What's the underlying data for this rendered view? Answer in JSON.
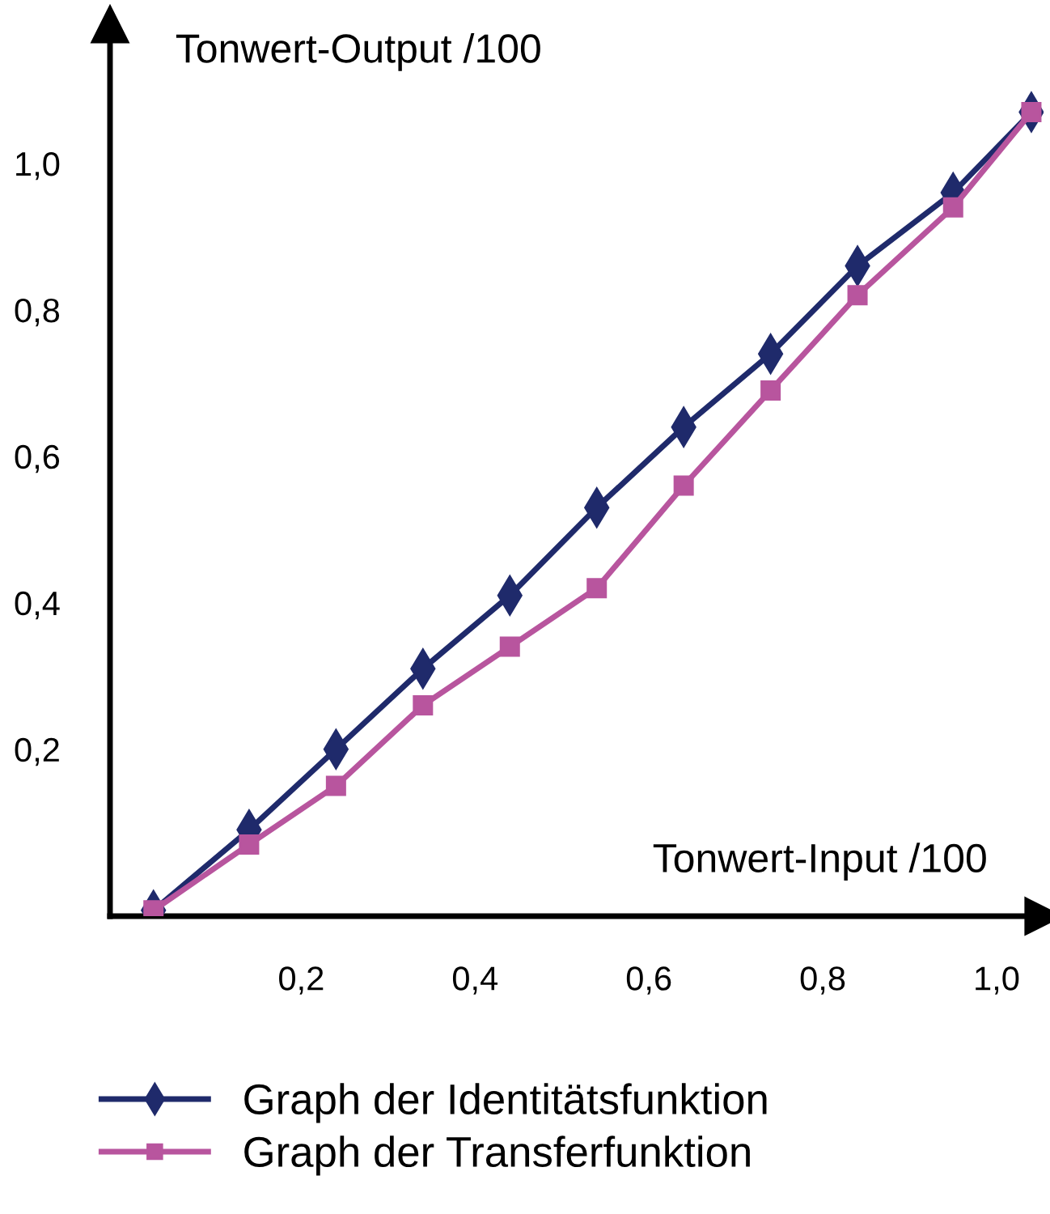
{
  "chart_data": {
    "type": "line",
    "xlabel": "Tonwert-Input /100",
    "ylabel": "Tonwert-Output /100",
    "xlim": [
      -0.02,
      1.054
    ],
    "ylim": [
      -0.028,
      1.19
    ],
    "xticks": [
      {
        "value": 0.2,
        "label": "0,2"
      },
      {
        "value": 0.4,
        "label": "0,4"
      },
      {
        "value": 0.6,
        "label": "0,6"
      },
      {
        "value": 0.8,
        "label": "0,8"
      },
      {
        "value": 1.0,
        "label": "1,0"
      }
    ],
    "yticks": [
      {
        "value": 0.2,
        "label": "0,2"
      },
      {
        "value": 0.4,
        "label": "0,4"
      },
      {
        "value": 0.6,
        "label": "0,6"
      },
      {
        "value": 0.8,
        "label": "0,8"
      },
      {
        "value": 1.0,
        "label": "1,0"
      }
    ],
    "x": [
      0.03,
      0.14,
      0.24,
      0.34,
      0.44,
      0.54,
      0.64,
      0.74,
      0.84,
      0.95,
      1.04
    ],
    "series": [
      {
        "name": "Graph der Identitätsfunktion",
        "color": "#1f2a6b",
        "marker": "diamond",
        "values": [
          -0.02,
          0.09,
          0.2,
          0.31,
          0.41,
          0.53,
          0.64,
          0.74,
          0.86,
          0.96,
          1.07
        ]
      },
      {
        "name": "Graph der Transferfunktion",
        "color": "#b8559e",
        "marker": "square",
        "values": [
          -0.02,
          0.07,
          0.15,
          0.26,
          0.34,
          0.42,
          0.56,
          0.69,
          0.82,
          0.94,
          1.07
        ]
      }
    ],
    "grid": false,
    "legend": "bottom",
    "line_style": "solid"
  }
}
